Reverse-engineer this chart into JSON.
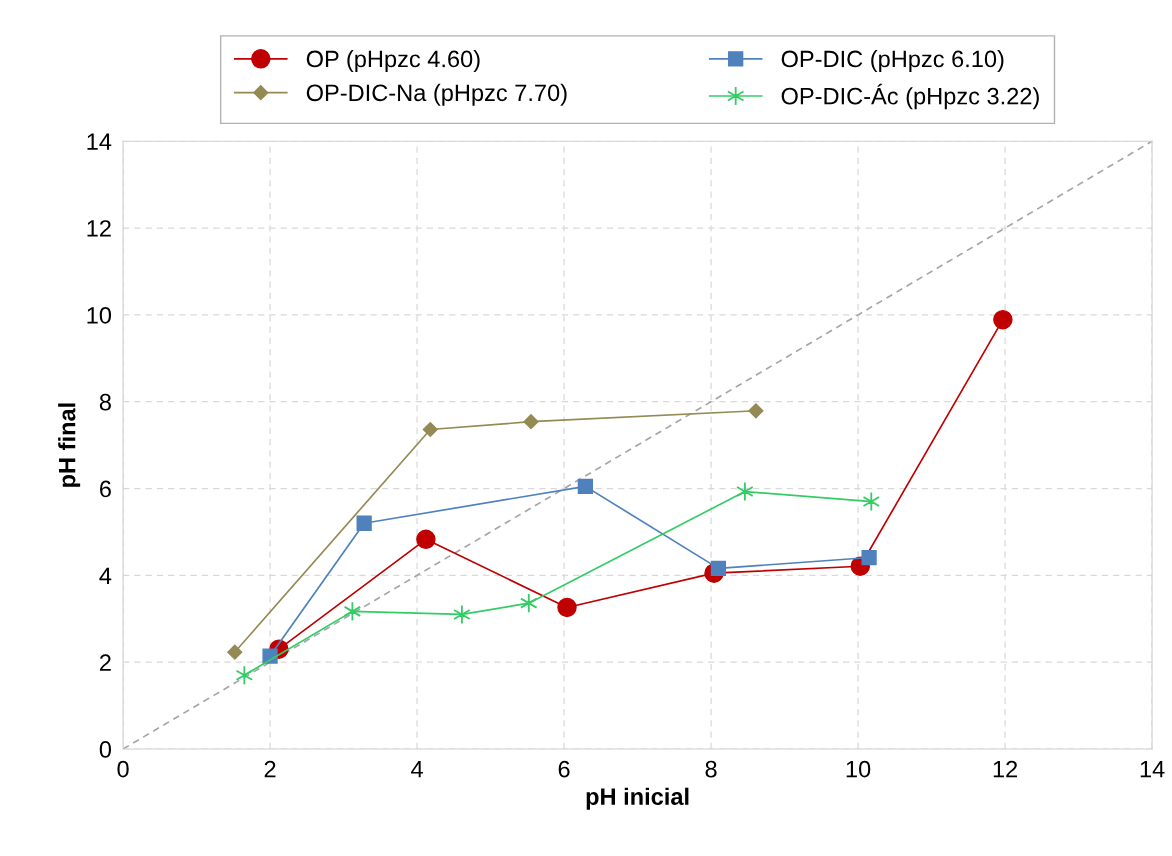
{
  "chart_data": {
    "type": "line",
    "xlabel": "pH inicial",
    "ylabel": "pH final",
    "xlim": [
      0,
      14
    ],
    "ylim": [
      0,
      14
    ],
    "xticks": [
      0,
      2,
      4,
      6,
      8,
      10,
      12,
      14
    ],
    "yticks": [
      0,
      2,
      4,
      6,
      8,
      10,
      12,
      14
    ],
    "grid": true,
    "legend": "top",
    "series": [
      {
        "name": "OP (pHpzc 4.60)",
        "color": "#c00000",
        "marker": "circle",
        "x": [
          2.12,
          4.12,
          6.04,
          8.04,
          10.03,
          11.97
        ],
        "values": [
          2.3,
          4.83,
          3.26,
          4.05,
          4.21,
          9.89
        ]
      },
      {
        "name": "OP-DIC (pHpzc 6.10)",
        "color": "#4f81bd",
        "marker": "square",
        "x": [
          2.0,
          3.28,
          6.29,
          8.1,
          10.15
        ],
        "values": [
          2.14,
          5.2,
          6.05,
          4.16,
          4.41
        ]
      },
      {
        "name": "OP-DIC-Na (pHpzc 7.70)",
        "color": "#948a54",
        "marker": "diamond",
        "x": [
          1.52,
          4.18,
          5.55,
          8.61
        ],
        "values": [
          2.23,
          7.36,
          7.54,
          7.79
        ]
      },
      {
        "name": "OP-DIC-Ác (pHpzc 3.22)",
        "color": "#33cc66",
        "marker": "cross",
        "x": [
          1.65,
          3.12,
          4.61,
          5.52,
          8.46,
          10.18
        ],
        "values": [
          1.7,
          3.17,
          3.1,
          3.36,
          5.93,
          5.7
        ]
      },
      {
        "color": "#a6a6a6",
        "marker": "none",
        "line_style": "dashed",
        "x": [
          0,
          14
        ],
        "values": [
          0,
          14
        ]
      }
    ]
  }
}
